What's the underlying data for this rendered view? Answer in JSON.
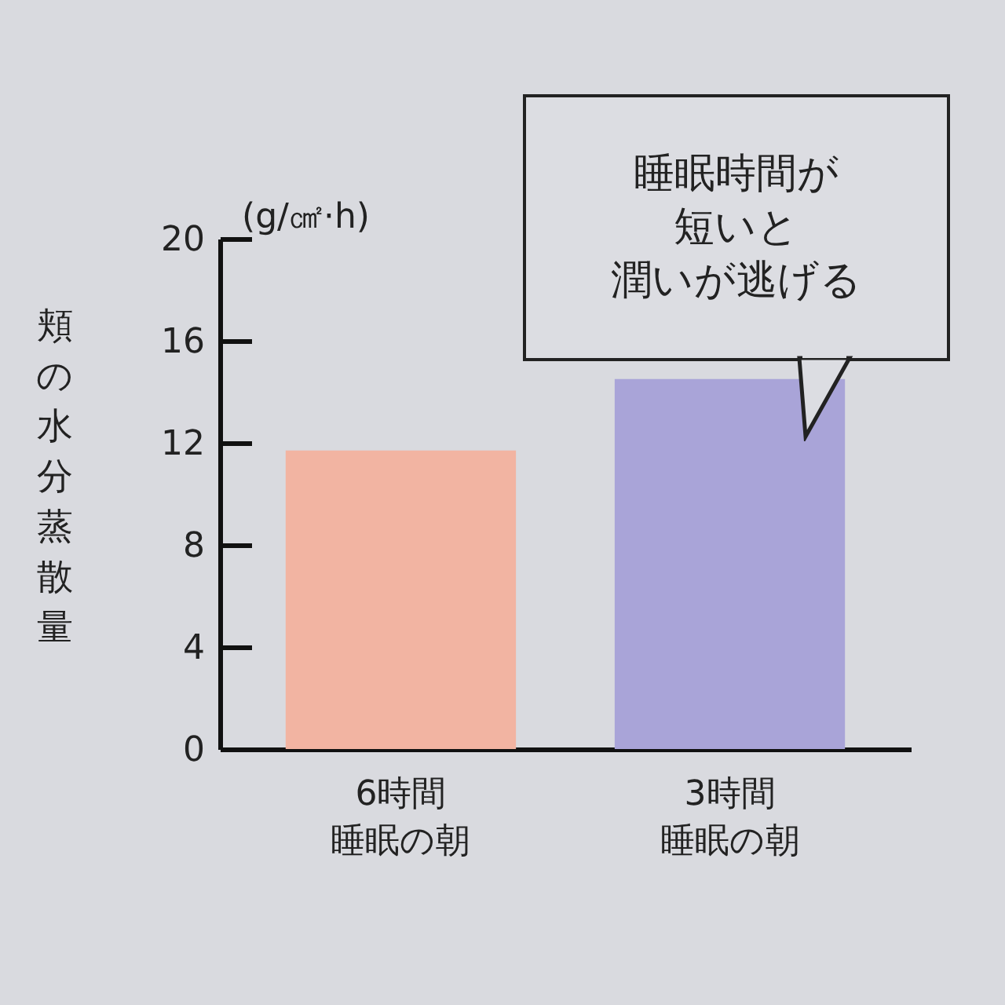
{
  "chart_data": {
    "type": "bar",
    "ylabel": "頬の水分蒸散量",
    "categories": [
      "6時間睡眠の朝",
      "3時間睡眠の朝"
    ],
    "values": [
      11.7,
      14.5
    ],
    "colors": [
      "#f2b4a2",
      "#a9a4d8"
    ],
    "ylim": [
      0,
      20
    ],
    "yticks": [
      0,
      4,
      8,
      12,
      16,
      20
    ],
    "legend": false,
    "annotations": [
      "(g/㎠·h)",
      "睡眠時間が",
      "短いと",
      "潤いが逃げる"
    ]
  }
}
